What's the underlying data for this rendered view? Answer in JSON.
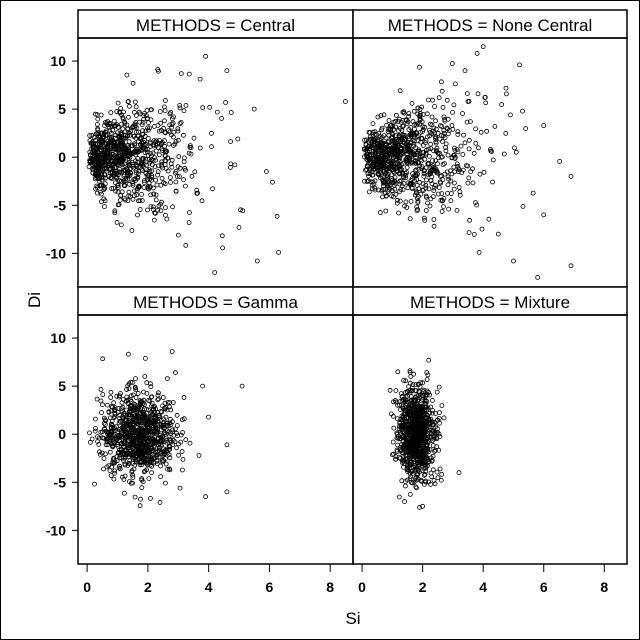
{
  "chart_data": {
    "type": "scatter",
    "xlabel": "Si",
    "ylabel": "Di",
    "xlim": [
      -0.3,
      8.75
    ],
    "ylim": [
      -13.5,
      12.4
    ],
    "xticks": [
      0,
      2,
      4,
      6,
      8
    ],
    "yticks": [
      10,
      5,
      0,
      -5,
      -10
    ],
    "grid": false,
    "panels": [
      {
        "title": "METHODS = Central",
        "n": 900,
        "x_dist": {
          "type": "gamma",
          "shape": 2,
          "scale": 0.7
        },
        "y_dist": {
          "sd_base": 1.3,
          "sd_slope": 0.8
        },
        "points": [
          [
            3.9,
            10.5
          ],
          [
            8.5,
            5.8
          ],
          [
            4.6,
            9
          ],
          [
            6.3,
            -9.9
          ],
          [
            4.2,
            -12
          ],
          [
            5.6,
            -10.8
          ],
          [
            5.0,
            -7.3
          ],
          [
            3.0,
            -8.1
          ],
          [
            5.5,
            5
          ],
          [
            3.1,
            8.7
          ],
          [
            5.9,
            -1.5
          ],
          [
            6.1,
            -2.6
          ]
        ]
      },
      {
        "title": "METHODS = None Central",
        "n": 900,
        "x_dist": {
          "type": "gamma",
          "shape": 2,
          "scale": 0.75
        },
        "y_dist": {
          "sd_base": 1.3,
          "sd_slope": 0.8
        },
        "points": [
          [
            4.0,
            11.5
          ],
          [
            3.8,
            10.8
          ],
          [
            5.2,
            9.6
          ],
          [
            6.0,
            3.3
          ],
          [
            6.9,
            -2
          ],
          [
            5.8,
            -12.5
          ],
          [
            6.9,
            -11.3
          ],
          [
            6.0,
            -6
          ],
          [
            5.0,
            -10.8
          ],
          [
            4.5,
            -8
          ],
          [
            5.3,
            4.8
          ],
          [
            3.4,
            9
          ]
        ]
      },
      {
        "title": "METHODS = Gamma",
        "n": 900,
        "x_dist": {
          "type": "normal",
          "mean": 1.7,
          "sd": 0.6
        },
        "y_dist": {
          "sd_base": 2.2,
          "sd_slope": 0
        },
        "points": [
          [
            5.1,
            5
          ],
          [
            4.6,
            -1.1
          ],
          [
            4.6,
            -6
          ],
          [
            2.8,
            8.6
          ],
          [
            3.8,
            5
          ],
          [
            3.9,
            -6.5
          ],
          [
            2.4,
            -7.1
          ]
        ]
      },
      {
        "title": "METHODS = Mixture",
        "n": 900,
        "x_dist": {
          "type": "normal",
          "mean": 1.8,
          "sd": 0.3
        },
        "y_dist": {
          "sd_base": 2.3,
          "sd_slope": 0
        },
        "points": [
          [
            2.2,
            7.7
          ],
          [
            1.4,
            -7
          ],
          [
            1.9,
            -7.6
          ],
          [
            3.2,
            -4
          ],
          [
            2.0,
            -7.5
          ]
        ]
      }
    ]
  }
}
